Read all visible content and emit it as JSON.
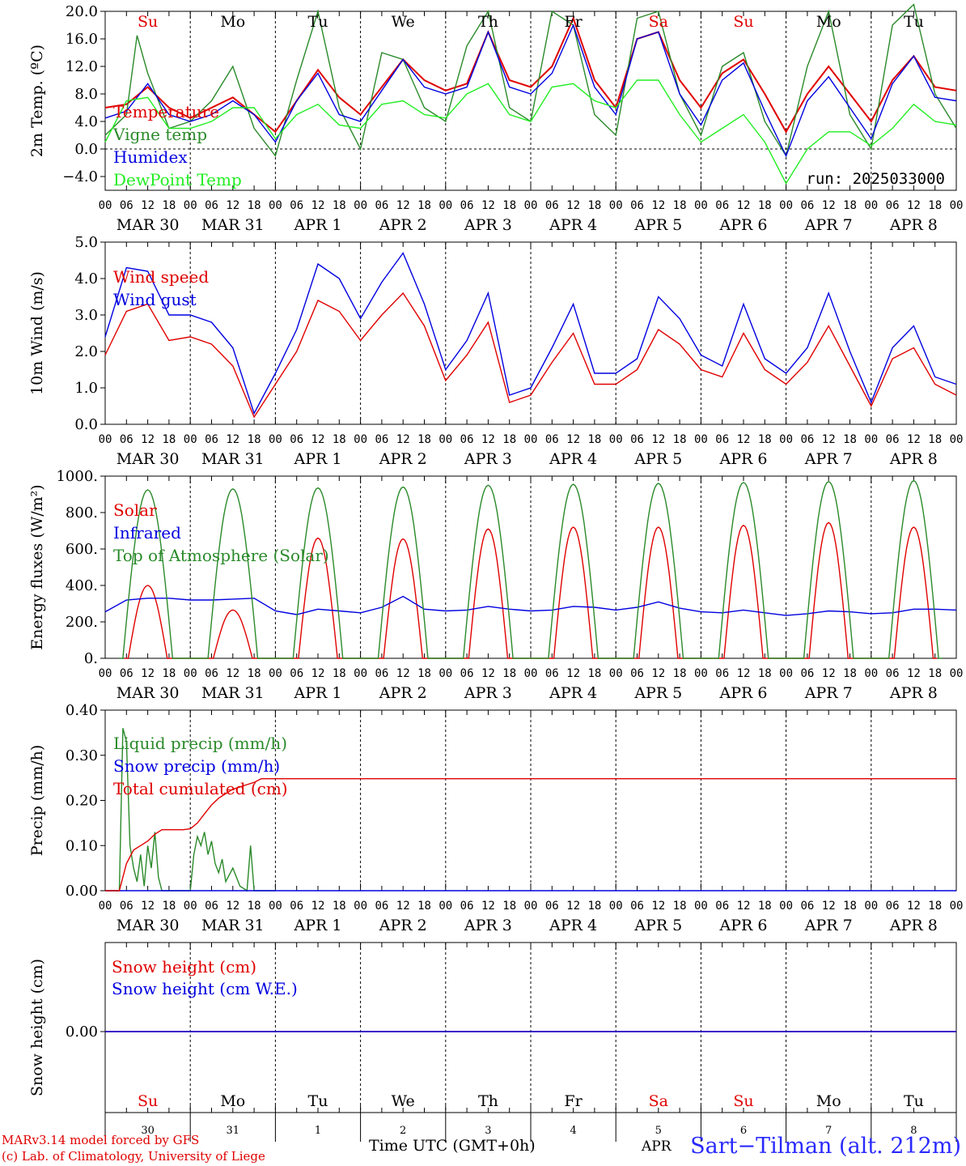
{
  "chart_data": [
    {
      "type": "line",
      "ylabel": "2m Temp. (ºC)",
      "ylim": [
        -6,
        20
      ],
      "yticks": [
        "20.0",
        "16.0",
        "12.0",
        "8.0",
        "4.0",
        "0.0",
        "−4.0"
      ],
      "legend": [
        "Temperature",
        "Vigne temp",
        "Humidex",
        "DewPoint Temp"
      ],
      "annotation": "run: 2025033000",
      "days_top": [
        "Su",
        "Mo",
        "Tu",
        "We",
        "Th",
        "Fr",
        "Sa",
        "Su",
        "Mo",
        "Tu"
      ],
      "series": [
        {
          "name": "Temperature",
          "color": "#e00000",
          "x": [
            0,
            6,
            12,
            18,
            24,
            30,
            36,
            42,
            48,
            54,
            60,
            66,
            72,
            78,
            84,
            90,
            96,
            102,
            108,
            114,
            120,
            126,
            132,
            138,
            144,
            150,
            156,
            162,
            168,
            174,
            180,
            186,
            192,
            198,
            204,
            210,
            216,
            222,
            228,
            234,
            240
          ],
          "values": [
            6,
            6.5,
            9,
            6,
            4.5,
            6,
            7.5,
            5,
            2.5,
            7,
            11.5,
            7.5,
            5,
            9,
            13,
            10,
            8.5,
            9.5,
            17,
            10,
            9,
            12,
            19,
            10,
            6,
            16,
            17,
            10,
            6,
            11,
            13,
            8,
            2.5,
            8,
            12,
            8,
            4,
            10,
            13.5,
            9,
            8.5
          ]
        },
        {
          "name": "Vigne temp",
          "color": "#2a8a2a",
          "x": [
            0,
            6,
            9,
            12,
            18,
            24,
            30,
            36,
            42,
            48,
            54,
            60,
            66,
            72,
            78,
            84,
            90,
            96,
            102,
            108,
            114,
            120,
            126,
            132,
            138,
            144,
            150,
            156,
            162,
            168,
            174,
            180,
            186,
            192,
            198,
            204,
            210,
            216,
            222,
            228,
            234,
            240
          ],
          "values": [
            2,
            5,
            16.5,
            11,
            3,
            4,
            7,
            12,
            3,
            -1,
            10,
            20,
            6,
            0,
            14,
            13,
            6,
            4,
            15,
            20,
            6,
            4,
            20,
            18,
            5,
            2,
            19,
            20,
            8,
            2,
            12,
            14,
            4,
            -1,
            12,
            20,
            5,
            0,
            18,
            21,
            8,
            3
          ]
        },
        {
          "name": "Humidex",
          "color": "#0000e0",
          "x": [
            0,
            6,
            12,
            18,
            24,
            30,
            36,
            42,
            48,
            54,
            60,
            66,
            72,
            78,
            84,
            90,
            96,
            102,
            108,
            114,
            120,
            126,
            132,
            138,
            144,
            150,
            156,
            162,
            168,
            174,
            180,
            186,
            192,
            198,
            204,
            210,
            216,
            222,
            228,
            234,
            240
          ],
          "values": [
            4.5,
            5.5,
            9.5,
            5,
            4,
            5,
            7,
            5,
            1,
            7,
            11,
            5,
            4,
            8.5,
            13,
            9,
            8,
            9,
            17,
            9,
            8,
            11,
            18,
            9,
            5,
            16,
            17,
            8,
            3.5,
            10,
            12.5,
            5.5,
            -1,
            7,
            10.5,
            6,
            1.5,
            9.5,
            13.5,
            7.5,
            7
          ]
        },
        {
          "name": "DewPoint Temp",
          "color": "#22ee22",
          "x": [
            0,
            6,
            12,
            18,
            24,
            30,
            36,
            42,
            48,
            54,
            60,
            66,
            72,
            78,
            84,
            90,
            96,
            102,
            108,
            114,
            120,
            126,
            132,
            138,
            144,
            150,
            156,
            162,
            168,
            174,
            180,
            186,
            192,
            198,
            204,
            210,
            216,
            222,
            228,
            234,
            240
          ],
          "values": [
            1,
            7,
            7.5,
            3,
            3,
            4,
            6,
            6,
            1.5,
            5,
            6.5,
            3.5,
            3,
            6.5,
            7,
            5,
            4.5,
            8,
            9.5,
            5,
            4,
            9,
            9.5,
            7,
            6,
            10,
            10,
            5,
            1,
            3,
            5,
            1,
            -5,
            0,
            2.5,
            2.5,
            0.5,
            3,
            6.5,
            4,
            3.5
          ]
        }
      ]
    },
    {
      "type": "line",
      "ylabel": "10m Wind (m/s)",
      "ylim": [
        0,
        5
      ],
      "yticks": [
        "5.0",
        "4.0",
        "3.0",
        "2.0",
        "1.0",
        "0.0"
      ],
      "legend": [
        "Wind speed",
        "Wind gust"
      ],
      "series": [
        {
          "name": "Wind speed",
          "color": "#e00000",
          "x": [
            0,
            6,
            12,
            18,
            24,
            30,
            36,
            42,
            48,
            54,
            60,
            66,
            72,
            78,
            84,
            90,
            96,
            102,
            108,
            114,
            120,
            126,
            132,
            138,
            144,
            150,
            156,
            162,
            168,
            174,
            180,
            186,
            192,
            198,
            204,
            210,
            216,
            222,
            228,
            234,
            240
          ],
          "values": [
            1.9,
            3.1,
            3.3,
            2.3,
            2.4,
            2.2,
            1.6,
            0.2,
            1.1,
            2,
            3.4,
            3.1,
            2.3,
            3,
            3.6,
            2.7,
            1.2,
            1.9,
            2.8,
            0.6,
            0.8,
            1.7,
            2.5,
            1.1,
            1.1,
            1.5,
            2.6,
            2.2,
            1.5,
            1.3,
            2.5,
            1.5,
            1.1,
            1.7,
            2.7,
            1.6,
            0.5,
            1.8,
            2.1,
            1.1,
            0.8
          ]
        },
        {
          "name": "Wind gust",
          "color": "#0000e0",
          "x": [
            0,
            6,
            12,
            18,
            24,
            30,
            36,
            42,
            48,
            54,
            60,
            66,
            72,
            78,
            84,
            90,
            96,
            102,
            108,
            114,
            120,
            126,
            132,
            138,
            144,
            150,
            156,
            162,
            168,
            174,
            180,
            186,
            192,
            198,
            204,
            210,
            216,
            222,
            228,
            234,
            240
          ],
          "values": [
            2.4,
            4.3,
            4.2,
            3,
            3,
            2.8,
            2.1,
            0.3,
            1.4,
            2.6,
            4.4,
            4,
            2.9,
            3.9,
            4.7,
            3.3,
            1.5,
            2.3,
            3.6,
            0.8,
            1,
            2.1,
            3.3,
            1.4,
            1.4,
            1.8,
            3.5,
            2.9,
            1.9,
            1.6,
            3.3,
            1.8,
            1.4,
            2.1,
            3.6,
            2,
            0.6,
            2.1,
            2.7,
            1.3,
            1.1
          ]
        }
      ]
    },
    {
      "type": "line",
      "ylabel": "Energy fluxes (W/m²)",
      "ylim": [
        0,
        1000
      ],
      "yticks": [
        "1000.",
        "800.",
        "600.",
        "400.",
        "200.",
        "0."
      ],
      "legend": [
        "Solar",
        "Infrared",
        "Top of Atmosphere (Solar)"
      ],
      "series": [
        {
          "name": "Solar",
          "color": "#e00000",
          "peaks": [
            400,
            265,
            660,
            655,
            710,
            720,
            720,
            730,
            745,
            720
          ]
        },
        {
          "name": "Infrared",
          "color": "#0000e0",
          "x": [
            0,
            6,
            12,
            18,
            24,
            30,
            36,
            42,
            48,
            54,
            60,
            66,
            72,
            78,
            84,
            90,
            96,
            102,
            108,
            114,
            120,
            126,
            132,
            138,
            144,
            150,
            156,
            162,
            168,
            174,
            180,
            186,
            192,
            198,
            204,
            210,
            216,
            222,
            228,
            234,
            240
          ],
          "values": [
            255,
            320,
            330,
            330,
            320,
            320,
            325,
            330,
            260,
            240,
            270,
            260,
            250,
            280,
            340,
            270,
            260,
            265,
            285,
            270,
            260,
            265,
            285,
            280,
            265,
            280,
            310,
            275,
            255,
            250,
            265,
            250,
            235,
            245,
            260,
            255,
            245,
            250,
            270,
            270,
            265
          ]
        },
        {
          "name": "Top of Atmosphere (Solar)",
          "color": "#2a8a2a",
          "peaks": [
            925,
            930,
            935,
            940,
            950,
            955,
            960,
            965,
            970,
            975
          ]
        }
      ]
    },
    {
      "type": "line",
      "ylabel": "Precip (mm/h)",
      "ylim": [
        0,
        0.4
      ],
      "yticks": [
        "0.40",
        "0.30",
        "0.20",
        "0.10",
        "0.00"
      ],
      "legend": [
        "Liquid precip (mm/h)",
        "Snow precip (mm/h)",
        "Total cumulated (cm)"
      ],
      "series": [
        {
          "name": "Liquid precip (mm/h)",
          "color": "#2a8a2a",
          "x": [
            0,
            4,
            5,
            6,
            7,
            8,
            9,
            10,
            11,
            12,
            13,
            14,
            15,
            16,
            18,
            24,
            25,
            26,
            27,
            28,
            29,
            30,
            31,
            32,
            33,
            34,
            36,
            38,
            40,
            41,
            42,
            43,
            44,
            48
          ],
          "values": [
            0,
            0,
            0.36,
            0.33,
            0.1,
            0.05,
            0.02,
            0.08,
            0.01,
            0.1,
            0.05,
            0.13,
            0.03,
            0,
            0,
            0,
            0.08,
            0.12,
            0.1,
            0.13,
            0.08,
            0.11,
            0.06,
            0.04,
            0.07,
            0.02,
            0.05,
            0.01,
            0,
            0.1,
            0,
            0,
            0,
            0
          ]
        },
        {
          "name": "Snow precip (mm/h)",
          "color": "#0000e0",
          "values": [
            0
          ]
        },
        {
          "name": "Total cumulated (cm)",
          "color": "#e00000",
          "x": [
            0,
            4,
            6,
            8,
            10,
            12,
            14,
            16,
            18,
            20,
            22,
            24,
            26,
            28,
            30,
            32,
            34,
            36,
            38,
            40,
            42,
            44,
            48,
            240
          ],
          "values": [
            0,
            0,
            0.06,
            0.09,
            0.1,
            0.11,
            0.125,
            0.135,
            0.135,
            0.135,
            0.135,
            0.137,
            0.15,
            0.17,
            0.19,
            0.205,
            0.215,
            0.225,
            0.23,
            0.235,
            0.24,
            0.248,
            0.248,
            0.248
          ]
        }
      ]
    },
    {
      "type": "line",
      "ylabel": "Snow height (cm)",
      "yticks": [
        "0.00"
      ],
      "legend": [
        "Snow height (cm)",
        "Snow height (cm W.E.)"
      ],
      "days_bottom": [
        "Su",
        "Mo",
        "Tu",
        "We",
        "Th",
        "Fr",
        "Sa",
        "Su",
        "Mo",
        "Tu"
      ],
      "day_numbers": [
        "30",
        "31",
        "1",
        "2",
        "3",
        "4",
        "5",
        "6",
        "7",
        "8"
      ],
      "series": [
        {
          "name": "Snow height (cm)",
          "color": "#e00000",
          "values": [
            0
          ]
        },
        {
          "name": "Snow height (cm W.E.)",
          "color": "#0000e0",
          "values": [
            0
          ]
        }
      ]
    }
  ],
  "hour_ticks": [
    "00",
    "06",
    "12",
    "18"
  ],
  "date_labels": [
    "MAR 30",
    "MAR 31",
    "APR  1",
    "APR  2",
    "APR  3",
    "APR  4",
    "APR  5",
    "APR  6",
    "APR  7",
    "APR  8"
  ],
  "weekend_color": "#e00000",
  "footer": {
    "credit_1": "MARv3.14 model forced by GFS",
    "credit_2": "(c) Lab. of Climatology, University of Liege",
    "xlabel": "Time UTC (GMT+0h)",
    "apr_fragment": "APR",
    "station": "Sart−Tilman (alt. 212m)"
  }
}
